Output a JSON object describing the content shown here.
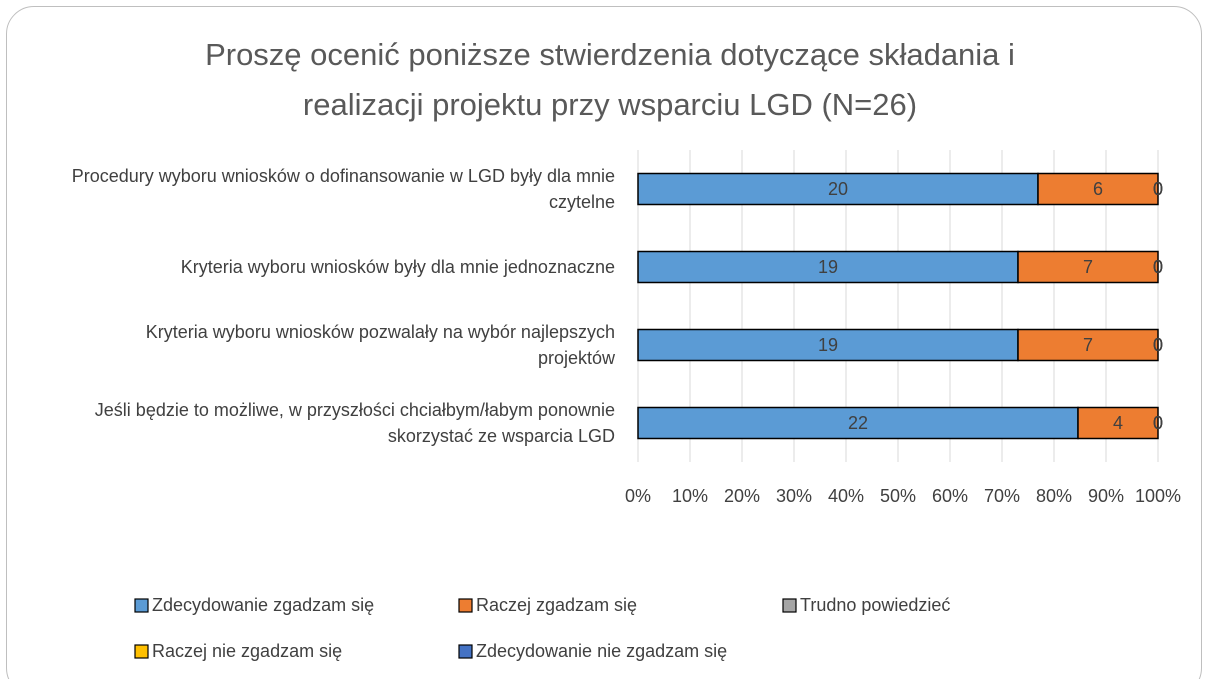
{
  "chart_data": {
    "type": "stacked100_barh",
    "title": "Proszę ocenić poniższe stwierdzenia dotyczące składania i realizacji projektu przy wsparciu LGD (N=26)",
    "categories": [
      "Procedury wyboru wniosków o dofinansowanie w LGD były dla mnie czytelne",
      "Kryteria wyboru wniosków były dla mnie jednoznaczne",
      "Kryteria wyboru wniosków pozwalały na wybór najlepszych projektów",
      "Jeśli będzie to możliwe, w przyszłości chciałbym/łabym ponownie skorzystać ze wsparcia LGD"
    ],
    "series": [
      {
        "name": "Zdecydowanie zgadzam się",
        "color": "#5b9bd5",
        "values": [
          20,
          19,
          19,
          22
        ]
      },
      {
        "name": "Raczej zgadzam się",
        "color": "#ed7d31",
        "values": [
          6,
          7,
          7,
          4
        ]
      },
      {
        "name": "Trudno powiedzieć",
        "color": "#a5a5a5",
        "values": [
          0,
          0,
          0,
          0
        ]
      },
      {
        "name": "Raczej nie zgadzam się",
        "color": "#ffc000",
        "values": [
          0,
          0,
          0,
          0
        ]
      },
      {
        "name": "Zdecydowanie nie zgadzam się",
        "color": "#4472c4",
        "values": [
          0,
          0,
          0,
          0
        ]
      }
    ],
    "xlim": [
      0,
      100
    ],
    "xticks": [
      {
        "value": 0,
        "label": "0%"
      },
      {
        "value": 10,
        "label": "10%"
      },
      {
        "value": 20,
        "label": "20%"
      },
      {
        "value": 30,
        "label": "30%"
      },
      {
        "value": 40,
        "label": "40%"
      },
      {
        "value": 50,
        "label": "50%"
      },
      {
        "value": 60,
        "label": "60%"
      },
      {
        "value": 70,
        "label": "70%"
      },
      {
        "value": 80,
        "label": "80%"
      },
      {
        "value": 90,
        "label": "90%"
      },
      {
        "value": 100,
        "label": "100%"
      }
    ],
    "grid": true,
    "legend": "bottom"
  }
}
